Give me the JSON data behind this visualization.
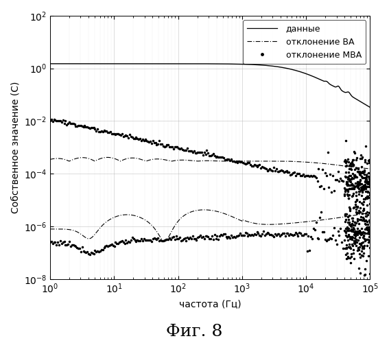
{
  "title": "",
  "xlabel": "частота (Гц)",
  "ylabel": "Собственное значение (С)",
  "figsize": [
    5.67,
    5.0
  ],
  "dpi": 100,
  "xlim": [
    1,
    100000.0
  ],
  "ylim": [
    1e-08,
    100.0
  ],
  "caption": "Фиг. 8",
  "legend_labels": [
    "данные",
    "отклонение ВА",
    "отклонение МВА"
  ]
}
